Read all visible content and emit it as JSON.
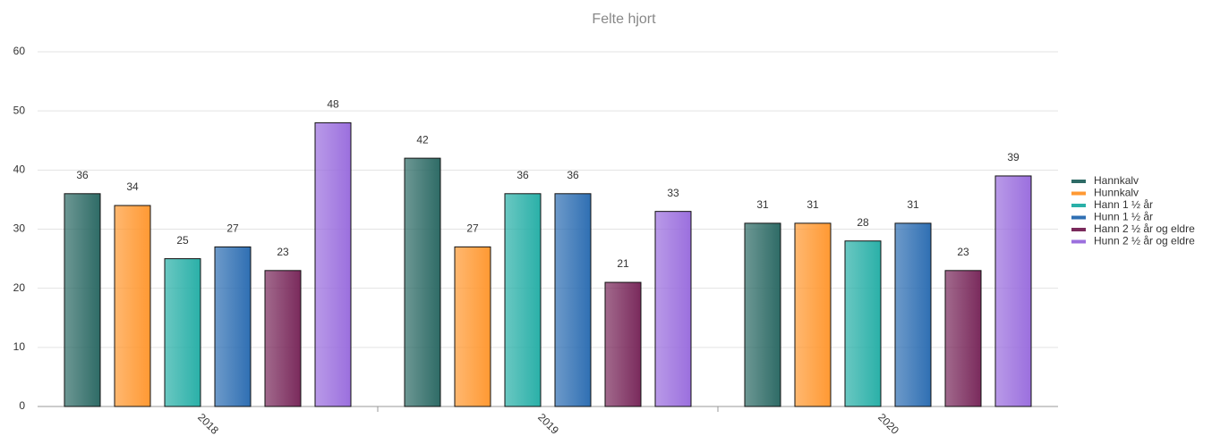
{
  "chart_data": {
    "type": "bar",
    "title": "Felte hjort",
    "categories": [
      "2018",
      "2019",
      "2020"
    ],
    "series": [
      {
        "name": "Hannkalv",
        "color": "#2e6b66",
        "values": [
          36,
          42,
          31
        ]
      },
      {
        "name": "Hunnkalv",
        "color": "#ff9933",
        "values": [
          34,
          27,
          31
        ]
      },
      {
        "name": "Hann 1 ½ år",
        "color": "#2ab0a8",
        "values": [
          25,
          36,
          28
        ]
      },
      {
        "name": "Hunn 1 ½ år",
        "color": "#2f6fb3",
        "values": [
          27,
          36,
          31
        ]
      },
      {
        "name": "Hann 2 ½ år og eldre",
        "color": "#7a2a5c",
        "values": [
          23,
          21,
          23
        ]
      },
      {
        "name": "Hunn 2 ½ år og eldre",
        "color": "#9b6fde",
        "values": [
          48,
          33,
          39
        ]
      }
    ],
    "ylim": [
      0,
      60
    ],
    "yticks": [
      0,
      10,
      20,
      30,
      40,
      50,
      60
    ],
    "grid": true,
    "legend": "right"
  }
}
